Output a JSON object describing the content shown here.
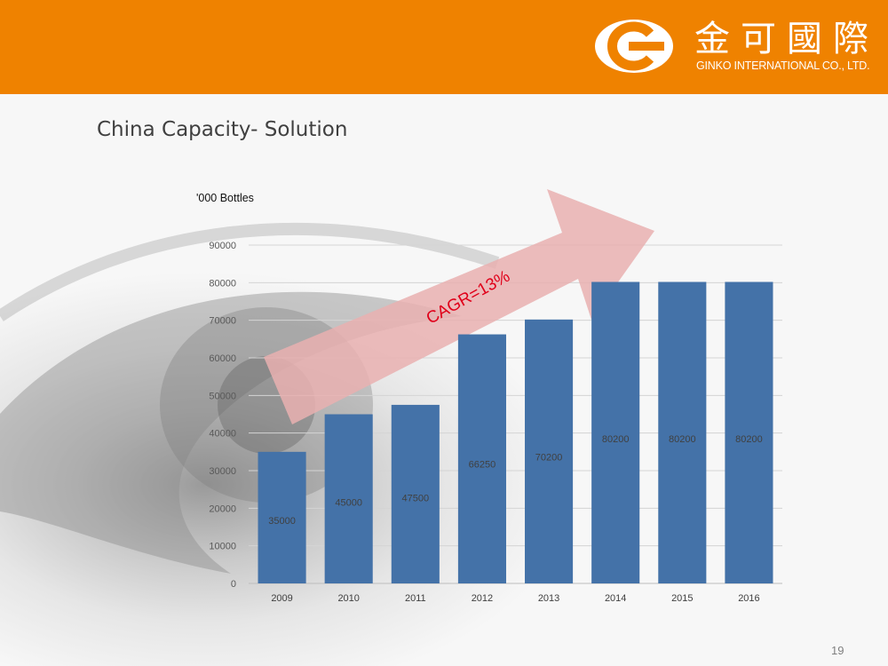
{
  "slide": {
    "title": "China Capacity- Solution",
    "page_number": "19"
  },
  "logo": {
    "chinese_name": "金可國際",
    "english_name": "GINKO INTERNATIONAL CO., LTD."
  },
  "colors": {
    "header": "#ef8200",
    "bar": "#4472a8",
    "arrow": "#e9b0b0",
    "annotation": "#e0001a"
  },
  "chart_data": {
    "type": "bar",
    "ylabel": "'000 Bottles",
    "categories": [
      "2009",
      "2010",
      "2011",
      "2012",
      "2013",
      "2014",
      "2015",
      "2016"
    ],
    "values": [
      35000,
      45000,
      47500,
      66250,
      70200,
      80200,
      80200,
      80200
    ],
    "data_labels": [
      "35000",
      "45000",
      "47500",
      "66250",
      "70200",
      "80200",
      "80200",
      "80200"
    ],
    "yticks": [
      0,
      10000,
      20000,
      30000,
      40000,
      50000,
      60000,
      70000,
      80000,
      90000
    ],
    "ylim": [
      0,
      90000
    ],
    "grid": true,
    "annotation": "CAGR=13%"
  }
}
